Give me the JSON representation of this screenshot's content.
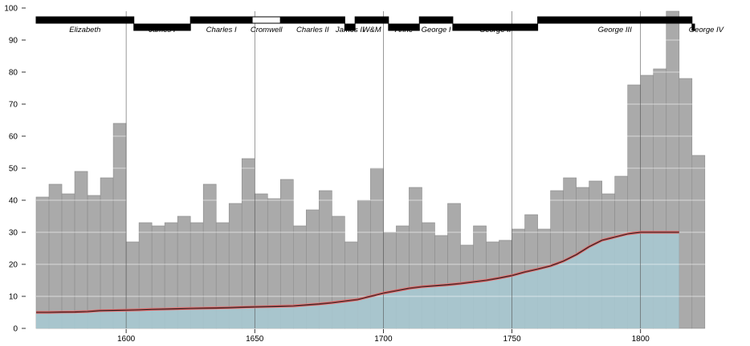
{
  "chart_data": {
    "type": "bar",
    "x_bin_width": 5,
    "xlim": [
      1565,
      1826
    ],
    "ylim": [
      0,
      100
    ],
    "x_ticks": [
      1600,
      1650,
      1700,
      1750,
      1800
    ],
    "y_ticks": [
      0,
      10,
      20,
      30,
      40,
      50,
      60,
      70,
      80,
      90,
      100
    ],
    "grid": "horizontal white gridlines; vertical lines at each x tick",
    "wheat_price": {
      "x": [
        1565,
        1570,
        1575,
        1580,
        1585,
        1590,
        1595,
        1600,
        1605,
        1610,
        1615,
        1620,
        1625,
        1630,
        1635,
        1640,
        1645,
        1650,
        1655,
        1660,
        1665,
        1670,
        1675,
        1680,
        1685,
        1690,
        1695,
        1700,
        1705,
        1710,
        1715,
        1720,
        1725,
        1730,
        1735,
        1740,
        1745,
        1750,
        1755,
        1760,
        1765,
        1770,
        1775,
        1780,
        1785,
        1790,
        1795,
        1800,
        1805,
        1810,
        1815,
        1820
      ],
      "values": [
        41,
        45,
        42,
        49,
        41.5,
        47,
        64,
        27,
        33,
        32,
        33,
        35,
        33,
        45,
        33,
        39,
        53,
        42,
        40.5,
        46.5,
        32,
        37,
        43,
        35,
        27,
        40,
        50,
        30,
        32,
        44,
        33,
        29,
        39,
        26,
        32,
        27,
        27.5,
        31,
        35.5,
        31,
        43,
        47,
        44,
        46,
        42,
        47.5,
        76,
        79,
        81,
        99,
        78,
        54
      ]
    },
    "wages": {
      "x": [
        1565,
        1570,
        1575,
        1580,
        1585,
        1590,
        1595,
        1600,
        1605,
        1610,
        1615,
        1620,
        1625,
        1630,
        1635,
        1640,
        1645,
        1650,
        1655,
        1660,
        1665,
        1670,
        1675,
        1680,
        1685,
        1690,
        1695,
        1700,
        1705,
        1710,
        1715,
        1720,
        1725,
        1730,
        1735,
        1740,
        1745,
        1750,
        1755,
        1760,
        1765,
        1770,
        1775,
        1780,
        1785,
        1790,
        1795,
        1800,
        1805,
        1810
      ],
      "values": [
        5,
        5,
        5.08,
        5.12,
        5.25,
        5.54,
        5.61,
        5.69,
        5.78,
        5.94,
        6.01,
        6.12,
        6.22,
        6.3,
        6.37,
        6.45,
        6.6,
        6.7,
        6.8,
        6.9,
        7,
        7.3,
        7.6,
        8,
        8.5,
        9,
        10,
        11,
        11.75,
        12.5,
        13,
        13.3,
        13.6,
        14,
        14.5,
        15,
        15.7,
        16.5,
        17.6,
        18.5,
        19.5,
        21,
        23,
        25.5,
        27.5,
        28.5,
        29.5,
        30,
        30,
        30
      ]
    },
    "reigns": [
      {
        "name": "Elizabeth",
        "start": 1565,
        "end": 1603,
        "row": 0,
        "fill": "black"
      },
      {
        "name": "James I",
        "start": 1603,
        "end": 1625,
        "row": 1,
        "fill": "black"
      },
      {
        "name": "Charles I",
        "start": 1625,
        "end": 1649,
        "row": 0,
        "fill": "black"
      },
      {
        "name": "Cromwell",
        "start": 1649,
        "end": 1660,
        "row": 0,
        "fill": "white"
      },
      {
        "name": "Charles II",
        "start": 1660,
        "end": 1685,
        "row": 0,
        "fill": "black"
      },
      {
        "name": "James II",
        "start": 1685,
        "end": 1689,
        "row": 1,
        "fill": "black"
      },
      {
        "name": "W&M",
        "start": 1689,
        "end": 1702,
        "row": 0,
        "fill": "black"
      },
      {
        "name": "Anne",
        "start": 1702,
        "end": 1714,
        "row": 1,
        "fill": "black"
      },
      {
        "name": "George I",
        "start": 1714,
        "end": 1727,
        "row": 0,
        "fill": "black"
      },
      {
        "name": "George II",
        "start": 1727,
        "end": 1760,
        "row": 1,
        "fill": "black"
      },
      {
        "name": "George III",
        "start": 1760,
        "end": 1820,
        "row": 0,
        "fill": "black"
      },
      {
        "name": "George IV",
        "start": 1820,
        "end": 1821,
        "row": 1,
        "fill": "black"
      }
    ]
  },
  "colors": {
    "bar_fill": "#aaaaaa",
    "bar_stroke": "#8c8c8c",
    "area_fill": "#a8cad4",
    "wage_line_outer": "#e06060",
    "wage_line_inner": "#222222",
    "gridline": "#ffffff",
    "vline": "#555555",
    "reign_bar": "#000000"
  }
}
